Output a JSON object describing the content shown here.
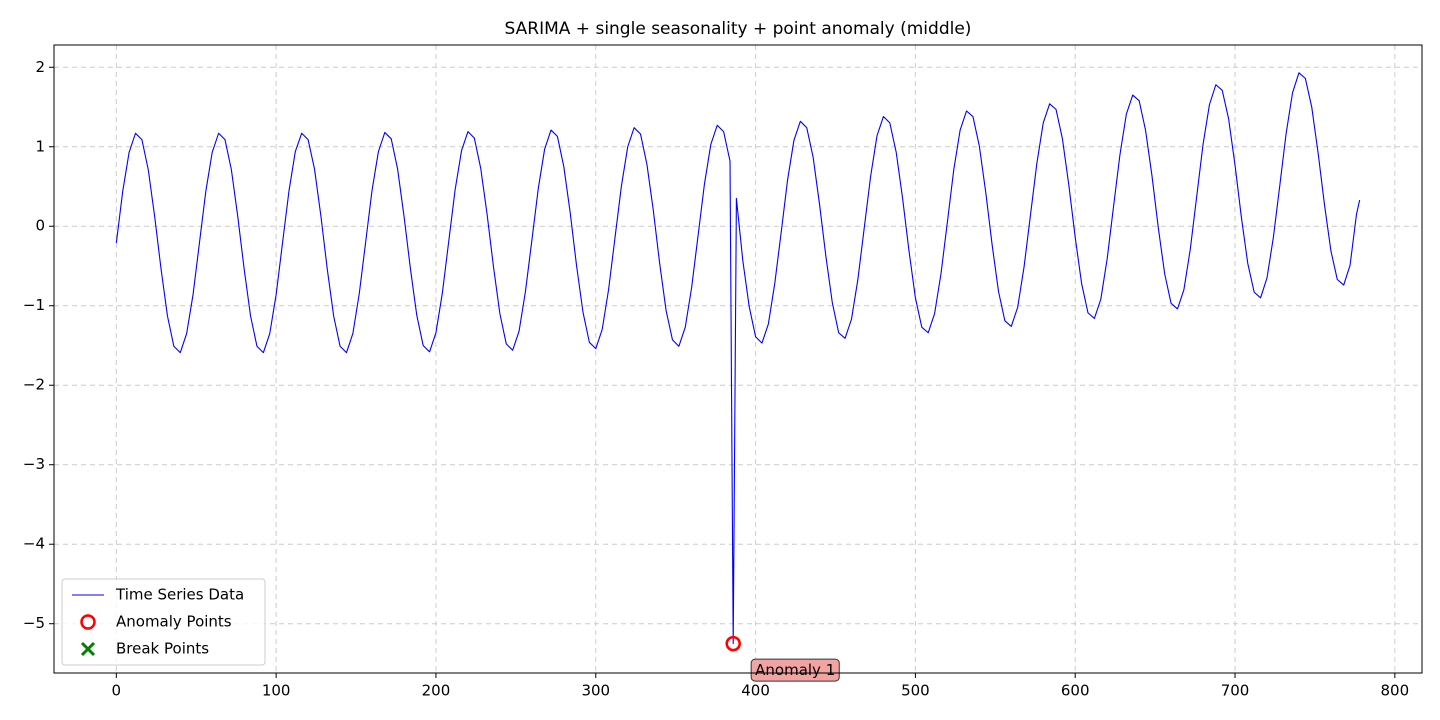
{
  "chart_data": {
    "type": "line",
    "title": "SARIMA + single seasonality + point anomaly (middle)",
    "x": [
      0,
      4,
      8,
      12,
      16,
      20,
      24,
      28,
      32,
      36,
      40,
      44,
      48,
      52,
      56,
      60,
      64,
      68,
      72,
      76,
      80,
      84,
      88,
      92,
      96,
      100,
      104,
      108,
      112,
      116,
      120,
      124,
      128,
      132,
      136,
      140,
      144,
      148,
      152,
      156,
      160,
      164,
      168,
      172,
      176,
      180,
      184,
      188,
      192,
      196,
      200,
      204,
      208,
      212,
      216,
      220,
      224,
      228,
      232,
      236,
      240,
      244,
      248,
      252,
      256,
      260,
      264,
      268,
      272,
      276,
      280,
      284,
      288,
      292,
      296,
      300,
      304,
      308,
      312,
      316,
      320,
      324,
      328,
      332,
      336,
      340,
      344,
      348,
      352,
      356,
      360,
      364,
      368,
      372,
      376,
      380,
      384,
      386,
      388,
      392,
      396,
      400,
      404,
      408,
      412,
      416,
      420,
      424,
      428,
      432,
      436,
      440,
      444,
      448,
      452,
      456,
      460,
      464,
      468,
      472,
      476,
      480,
      484,
      488,
      492,
      496,
      500,
      504,
      508,
      512,
      516,
      520,
      524,
      528,
      532,
      536,
      540,
      544,
      548,
      552,
      556,
      560,
      564,
      568,
      572,
      576,
      580,
      584,
      588,
      592,
      596,
      600,
      604,
      608,
      612,
      616,
      620,
      624,
      628,
      632,
      636,
      640,
      644,
      648,
      652,
      656,
      660,
      664,
      668,
      672,
      676,
      680,
      684,
      688,
      692,
      696,
      700,
      704,
      708,
      712,
      716,
      720,
      724,
      728,
      732,
      736,
      740,
      744,
      748,
      752,
      756,
      760,
      764,
      768,
      772,
      776,
      778
    ],
    "series": [
      {
        "name": "Time Series Data",
        "color": "#0000ff",
        "values": [
          -0.21,
          0.44,
          0.93,
          1.17,
          1.09,
          0.71,
          0.12,
          -0.54,
          -1.13,
          -1.51,
          -1.59,
          -1.35,
          -0.86,
          -0.21,
          0.44,
          0.93,
          1.17,
          1.09,
          0.71,
          0.12,
          -0.54,
          -1.13,
          -1.51,
          -1.59,
          -1.35,
          -0.86,
          -0.21,
          0.44,
          0.94,
          1.17,
          1.09,
          0.72,
          0.13,
          -0.54,
          -1.13,
          -1.51,
          -1.59,
          -1.35,
          -0.85,
          -0.2,
          0.45,
          0.94,
          1.18,
          1.1,
          0.72,
          0.13,
          -0.53,
          -1.12,
          -1.5,
          -1.58,
          -1.34,
          -0.84,
          -0.19,
          0.46,
          0.95,
          1.19,
          1.11,
          0.73,
          0.15,
          -0.51,
          -1.1,
          -1.48,
          -1.56,
          -1.32,
          -0.82,
          -0.18,
          0.47,
          0.97,
          1.21,
          1.13,
          0.75,
          0.17,
          -0.5,
          -1.08,
          -1.46,
          -1.54,
          -1.3,
          -0.8,
          -0.15,
          0.5,
          1.0,
          1.24,
          1.16,
          0.78,
          0.2,
          -0.47,
          -1.06,
          -1.43,
          -1.51,
          -1.27,
          -0.77,
          -0.12,
          0.53,
          1.03,
          1.27,
          1.19,
          0.82,
          -5.25,
          0.35,
          -0.43,
          -1.01,
          -1.39,
          -1.47,
          -1.23,
          -0.72,
          -0.08,
          0.58,
          1.08,
          1.32,
          1.24,
          0.87,
          0.28,
          -0.38,
          -0.96,
          -1.34,
          -1.41,
          -1.17,
          -0.67,
          -0.02,
          0.63,
          1.14,
          1.38,
          1.3,
          0.93,
          0.35,
          -0.31,
          -0.9,
          -1.27,
          -1.34,
          -1.1,
          -0.6,
          0.05,
          0.71,
          1.21,
          1.45,
          1.38,
          1.01,
          0.43,
          -0.23,
          -0.82,
          -1.19,
          -1.26,
          -1.02,
          -0.51,
          0.14,
          0.79,
          1.3,
          1.54,
          1.47,
          1.1,
          0.52,
          -0.14,
          -0.72,
          -1.09,
          -1.16,
          -0.92,
          -0.41,
          0.25,
          0.9,
          1.41,
          1.65,
          1.58,
          1.21,
          0.64,
          -0.02,
          -0.6,
          -0.97,
          -1.04,
          -0.8,
          -0.29,
          0.37,
          1.03,
          1.53,
          1.78,
          1.71,
          1.35,
          0.77,
          0.11,
          -0.47,
          -0.83,
          -0.9,
          -0.65,
          -0.14,
          0.51,
          1.17,
          1.68,
          1.93,
          1.86,
          1.5,
          0.92,
          0.27,
          -0.31,
          -0.67,
          -0.74,
          -0.49,
          0.15,
          0.33
        ]
      }
    ],
    "anomalies": {
      "name": "Anomaly Points",
      "color": "#ff0000",
      "x": [
        386
      ],
      "values": [
        -5.25
      ],
      "labels": [
        "Anomaly 1"
      ]
    },
    "break_points": {
      "name": "Break Points",
      "color": "#008000",
      "x": [],
      "values": []
    },
    "xlim": [
      -39,
      817
    ],
    "ylim": [
      -5.62,
      2.28
    ],
    "xticks": [
      0,
      100,
      200,
      300,
      400,
      500,
      600,
      700,
      800
    ],
    "yticks": [
      {
        "value": -5,
        "label": "−5"
      },
      {
        "value": -4,
        "label": "−4"
      },
      {
        "value": -3,
        "label": "−3"
      },
      {
        "value": -2,
        "label": "−2"
      },
      {
        "value": -1,
        "label": "−1"
      },
      0,
      1,
      2
    ],
    "grid": true,
    "legend": "lower left"
  }
}
